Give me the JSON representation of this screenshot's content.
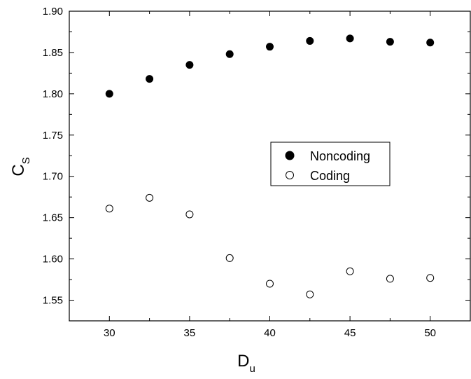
{
  "chart_data": {
    "type": "scatter",
    "title": "",
    "xlabel": {
      "main": "D",
      "sub": "u"
    },
    "ylabel": {
      "main": "C",
      "sub": "S"
    },
    "xlim": [
      27.5,
      52.5
    ],
    "ylim": [
      1.525,
      1.9
    ],
    "x_ticks": [
      "30",
      "35",
      "40",
      "45",
      "50"
    ],
    "y_ticks": [
      "1.55",
      "1.60",
      "1.65",
      "1.70",
      "1.75",
      "1.80",
      "1.85",
      "1.90"
    ],
    "grid": false,
    "legend_position": "center-right",
    "x": [
      30,
      32.5,
      35,
      37.5,
      40,
      42.5,
      45,
      47.5,
      50
    ],
    "series": [
      {
        "name": "Noncoding",
        "marker": "filled-circle",
        "color": "#000000",
        "values": [
          1.8,
          1.818,
          1.835,
          1.848,
          1.857,
          1.864,
          1.867,
          1.863,
          1.862
        ]
      },
      {
        "name": "Coding",
        "marker": "open-circle",
        "color": "#000000",
        "values": [
          1.661,
          1.674,
          1.654,
          1.601,
          1.57,
          1.557,
          1.585,
          1.576,
          1.577
        ]
      }
    ]
  }
}
